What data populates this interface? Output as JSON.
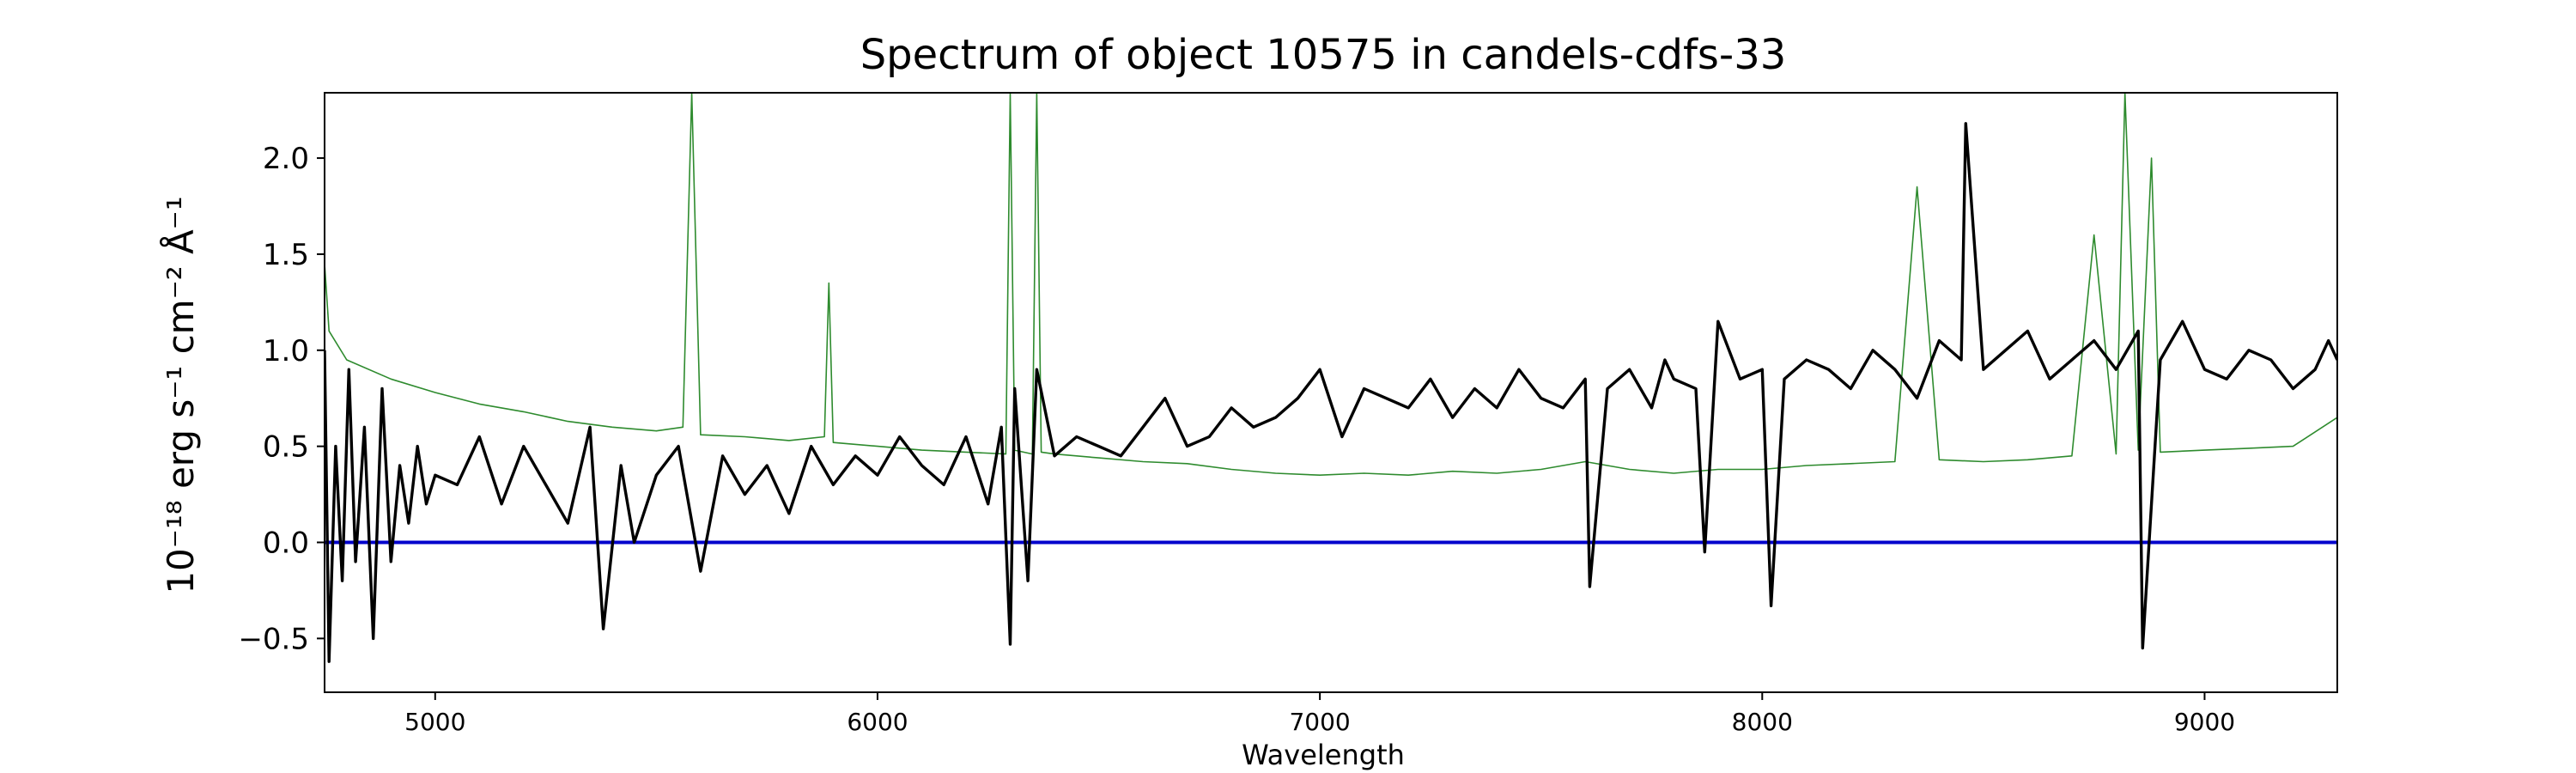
{
  "chart_data": {
    "type": "line",
    "title": "Spectrum of object 10575 in candels-cdfs-33",
    "xlabel": "Wavelength",
    "ylabel": "10⁻¹⁸ erg s⁻¹ cm⁻² Å⁻¹",
    "xlim": [
      4750,
      9300
    ],
    "ylim": [
      -0.78,
      2.34
    ],
    "xticks": [
      5000,
      6000,
      7000,
      8000,
      9000
    ],
    "yticks": [
      -0.5,
      0.0,
      0.5,
      1.0,
      1.5,
      2.0
    ],
    "ytick_labels": [
      "−0.5",
      "0.0",
      "0.5",
      "1.0",
      "1.5",
      "2.0"
    ],
    "grid": false,
    "colors": {
      "flux": "#000000",
      "error": "#2e8b2e",
      "zero_line": "#0000cc"
    },
    "series": [
      {
        "role": "flux",
        "x": [
          4750,
          4760,
          4775,
          4790,
          4805,
          4820,
          4840,
          4860,
          4880,
          4900,
          4920,
          4940,
          4960,
          4980,
          5000,
          5050,
          5100,
          5150,
          5200,
          5250,
          5300,
          5350,
          5380,
          5420,
          5450,
          5500,
          5550,
          5600,
          5650,
          5700,
          5750,
          5800,
          5850,
          5900,
          5950,
          6000,
          6050,
          6100,
          6150,
          6200,
          6250,
          6280,
          6300,
          6310,
          6340,
          6360,
          6400,
          6450,
          6500,
          6550,
          6600,
          6650,
          6700,
          6750,
          6800,
          6850,
          6900,
          6950,
          7000,
          7050,
          7100,
          7150,
          7200,
          7250,
          7300,
          7350,
          7400,
          7450,
          7500,
          7550,
          7600,
          7610,
          7650,
          7700,
          7750,
          7780,
          7800,
          7850,
          7870,
          7900,
          7950,
          8000,
          8020,
          8050,
          8100,
          8150,
          8200,
          8250,
          8300,
          8350,
          8400,
          8450,
          8460,
          8500,
          8550,
          8600,
          8650,
          8700,
          8750,
          8800,
          8850,
          8860,
          8900,
          8950,
          9000,
          9050,
          9100,
          9150,
          9200,
          9250,
          9280,
          9300
        ],
        "y": [
          1.0,
          -0.62,
          0.5,
          -0.2,
          0.9,
          -0.1,
          0.6,
          -0.5,
          0.8,
          -0.1,
          0.4,
          0.1,
          0.5,
          0.2,
          0.35,
          0.3,
          0.55,
          0.2,
          0.5,
          0.3,
          0.1,
          0.6,
          -0.45,
          0.4,
          0.0,
          0.35,
          0.5,
          -0.15,
          0.45,
          0.25,
          0.4,
          0.15,
          0.5,
          0.3,
          0.45,
          0.35,
          0.55,
          0.4,
          0.3,
          0.55,
          0.2,
          0.6,
          -0.53,
          0.8,
          -0.2,
          0.9,
          0.45,
          0.55,
          0.5,
          0.45,
          0.6,
          0.75,
          0.5,
          0.55,
          0.7,
          0.6,
          0.65,
          0.75,
          0.9,
          0.55,
          0.8,
          0.75,
          0.7,
          0.85,
          0.65,
          0.8,
          0.7,
          0.9,
          0.75,
          0.7,
          0.85,
          -0.23,
          0.8,
          0.9,
          0.7,
          0.95,
          0.85,
          0.8,
          -0.05,
          1.15,
          0.85,
          0.9,
          -0.33,
          0.85,
          0.95,
          0.9,
          0.8,
          1.0,
          0.9,
          0.75,
          1.05,
          0.95,
          2.18,
          0.9,
          1.0,
          1.1,
          0.85,
          0.95,
          1.05,
          0.9,
          1.1,
          -0.55,
          0.95,
          1.15,
          0.9,
          0.85,
          1.0,
          0.95,
          0.8,
          0.9,
          1.05,
          0.95
        ]
      },
      {
        "role": "error",
        "x": [
          4750,
          4760,
          4800,
          4900,
          5000,
          5100,
          5200,
          5300,
          5400,
          5500,
          5560,
          5580,
          5600,
          5700,
          5800,
          5880,
          5890,
          5900,
          6000,
          6100,
          6200,
          6290,
          6300,
          6310,
          6350,
          6360,
          6370,
          6400,
          6500,
          6600,
          6700,
          6800,
          6900,
          7000,
          7100,
          7200,
          7300,
          7400,
          7500,
          7600,
          7700,
          7800,
          7900,
          8000,
          8100,
          8200,
          8300,
          8350,
          8400,
          8500,
          8600,
          8700,
          8750,
          8800,
          8820,
          8850,
          8880,
          8900,
          9000,
          9100,
          9200,
          9300
        ],
        "y": [
          1.45,
          1.1,
          0.95,
          0.85,
          0.78,
          0.72,
          0.68,
          0.63,
          0.6,
          0.58,
          0.6,
          2.34,
          0.56,
          0.55,
          0.53,
          0.55,
          1.35,
          0.52,
          0.5,
          0.48,
          0.47,
          0.46,
          2.34,
          0.48,
          0.46,
          2.34,
          0.47,
          0.46,
          0.44,
          0.42,
          0.41,
          0.38,
          0.36,
          0.35,
          0.36,
          0.35,
          0.37,
          0.36,
          0.38,
          0.42,
          0.38,
          0.36,
          0.38,
          0.38,
          0.4,
          0.41,
          0.42,
          1.85,
          0.43,
          0.42,
          0.43,
          0.45,
          1.6,
          0.46,
          2.34,
          0.48,
          2.0,
          0.47,
          0.48,
          0.49,
          0.5,
          0.65
        ]
      },
      {
        "role": "zero_line",
        "x": [
          4750,
          9300
        ],
        "y": [
          0.0,
          0.0
        ]
      }
    ]
  }
}
